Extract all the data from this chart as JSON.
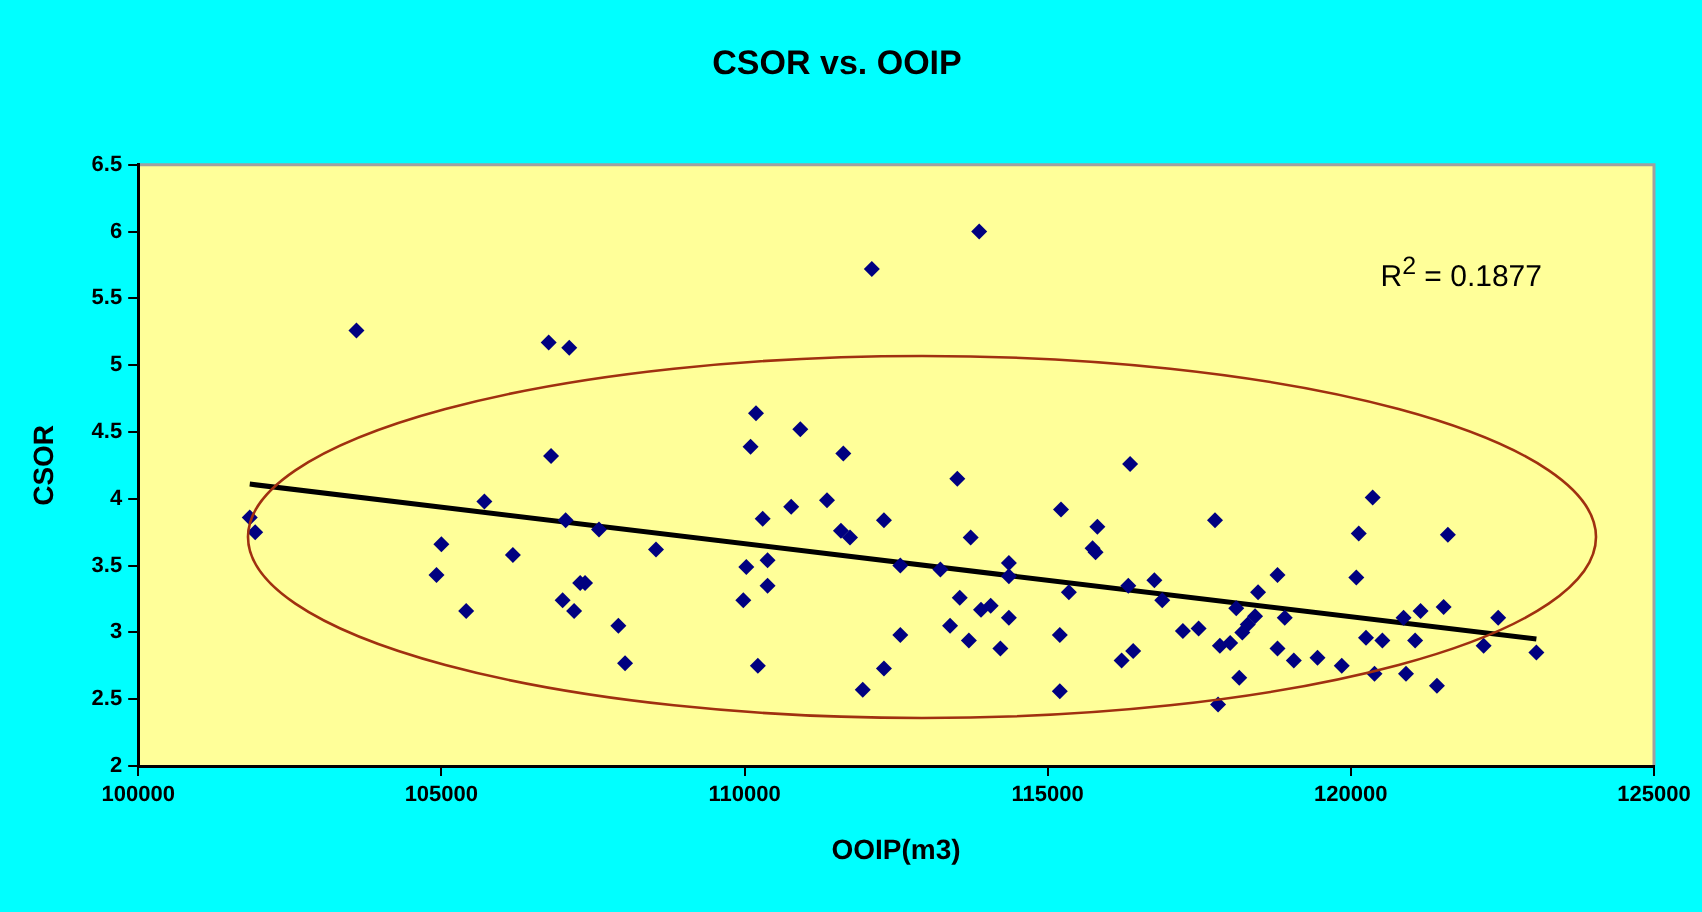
{
  "chart_data": {
    "type": "scatter",
    "title": "CSOR vs. OOIP",
    "xlabel": "OOIP(m3)",
    "ylabel": "CSOR",
    "xlim": [
      100000,
      125000
    ],
    "xticks": [
      100000,
      105000,
      110000,
      115000,
      120000,
      125000
    ],
    "ylim": [
      2,
      6.5
    ],
    "yticks": [
      2,
      2.5,
      3,
      3.5,
      4,
      4.5,
      5,
      5.5,
      6,
      6.5
    ],
    "grid": false,
    "legend": false,
    "marker": "diamond",
    "annotations": [
      "R$^{2}$ = 0.1877"
    ],
    "series": [
      {
        "type": "scatter",
        "color": "#000080",
        "x": [
          101840,
          101930,
          103600,
          105000,
          104920,
          105410,
          105710,
          106180,
          106770,
          107110,
          106810,
          107050,
          107600,
          107000,
          107190,
          107290,
          107370,
          107920,
          108030,
          108540,
          110190,
          110100,
          110920,
          111630,
          110770,
          111360,
          110300,
          111590,
          111740,
          112300,
          110030,
          110380,
          110380,
          109980,
          110220,
          112100,
          113870,
          113510,
          113730,
          112570,
          113230,
          114360,
          114360,
          113550,
          113900,
          114060,
          114360,
          113390,
          113700,
          114220,
          112570,
          112300,
          111950,
          115220,
          115820,
          115740,
          115790,
          116360,
          116330,
          115350,
          115200,
          115200,
          116220,
          116410,
          116760,
          116890,
          117760,
          117230,
          117490,
          118110,
          117840,
          118010,
          118470,
          118790,
          118420,
          118300,
          118210,
          118910,
          117810,
          118160,
          118790,
          119060,
          119450,
          119850,
          120130,
          120360,
          120090,
          120250,
          120520,
          120390,
          120870,
          121150,
          121530,
          121600,
          121060,
          120910,
          121420,
          122190,
          122430,
          123060
        ],
        "values": [
          3.86,
          3.75,
          5.26,
          3.66,
          3.43,
          3.16,
          3.98,
          3.58,
          5.17,
          5.13,
          4.32,
          3.84,
          3.77,
          3.24,
          3.16,
          3.37,
          3.37,
          3.05,
          2.77,
          3.62,
          4.64,
          4.39,
          4.52,
          4.34,
          3.94,
          3.99,
          3.85,
          3.76,
          3.71,
          3.84,
          3.49,
          3.54,
          3.35,
          3.24,
          2.75,
          5.72,
          6.0,
          4.15,
          3.71,
          3.5,
          3.47,
          3.52,
          3.42,
          3.26,
          3.17,
          3.2,
          3.11,
          3.05,
          2.94,
          2.88,
          2.98,
          2.73,
          2.57,
          3.92,
          3.79,
          3.63,
          3.6,
          4.26,
          3.35,
          3.3,
          2.98,
          2.56,
          2.79,
          2.86,
          3.39,
          3.24,
          3.84,
          3.01,
          3.03,
          3.18,
          2.9,
          2.92,
          3.3,
          3.43,
          3.12,
          3.06,
          3.0,
          3.11,
          2.46,
          2.66,
          2.88,
          2.79,
          2.81,
          2.75,
          3.74,
          4.01,
          3.41,
          2.96,
          2.94,
          2.69,
          3.11,
          3.16,
          3.19,
          3.73,
          2.94,
          2.69,
          2.6,
          2.9,
          3.11,
          2.85
        ]
      },
      {
        "type": "line",
        "color": "#000000",
        "marker": "none",
        "x": [
          101840,
          123060
        ],
        "values": [
          4.11,
          2.95
        ]
      }
    ]
  }
}
